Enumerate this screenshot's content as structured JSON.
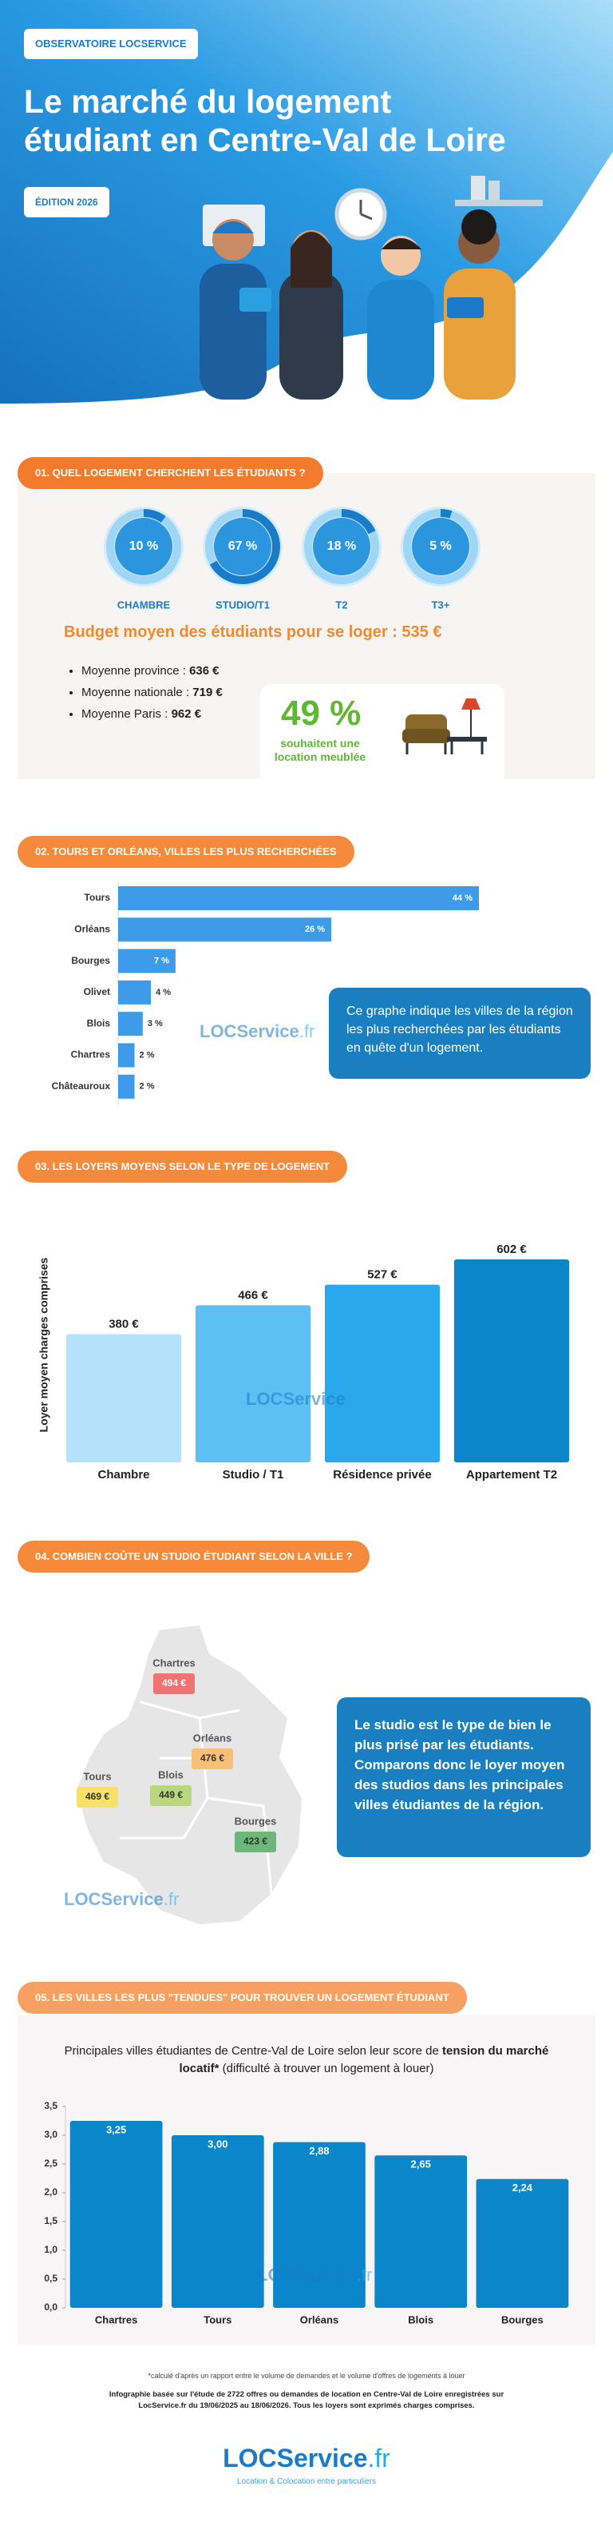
{
  "header": {
    "badge": "OBSERVATOIRE LOCSERVICE",
    "title_lines": [
      "Le marché du logement",
      "étudiant en Centre-Val de Loire"
    ],
    "edition": "ÉDITION 2026"
  },
  "section1": {
    "heading": "01. QUEL LOGEMENT CHERCHENT LES ÉTUDIANTS ?",
    "chart_data": {
      "type": "donut",
      "categories": [
        "CHAMBRE",
        "STUDIO/T1",
        "T2",
        "T3+"
      ],
      "values": [
        10,
        67,
        18,
        5
      ],
      "value_labels": [
        "10 %",
        "67 %",
        "18 %",
        "5 %"
      ],
      "color": "#1a7cc9"
    },
    "budget": "Budget moyen des étudiants pour se loger : 535 €",
    "averages": [
      {
        "label": "Moyenne province :",
        "value": "636 €"
      },
      {
        "label": "Moyenne nationale :",
        "value": "719 €"
      },
      {
        "label": "Moyenne Paris :",
        "value": "962 €"
      }
    ],
    "furnished": {
      "value": "49 %",
      "text": "souhaitent une location meublée"
    }
  },
  "section2": {
    "heading": "02. TOURS ET ORLÉANS, VILLES LES PLUS RECHERCHÉES",
    "chart_data": {
      "type": "hbar",
      "categories": [
        "Tours",
        "Orléans",
        "Bourges",
        "Olivet",
        "Blois",
        "Chartres",
        "Châteauroux"
      ],
      "values": [
        44,
        26,
        7,
        4,
        3,
        2,
        2
      ],
      "value_labels": [
        "44 %",
        "26 %",
        "7 %",
        "4 %",
        "3 %",
        "2 %",
        "2 %"
      ],
      "color": "#3d9be9"
    },
    "callout": "Ce graphe indique les villes de la région les plus recherchées par les étudiants en quête d'un logement."
  },
  "section3": {
    "heading": "03. LES LOYERS MOYENS SELON LE TYPE DE LOGEMENT",
    "chart_data": {
      "type": "bar",
      "y_label": "Loyer moyen charges comprises",
      "categories": [
        "Chambre",
        "Studio / T1",
        "Résidence privée",
        "Appartement T2"
      ],
      "values": [
        380,
        466,
        527,
        602
      ],
      "value_labels": [
        "380 €",
        "466 €",
        "527 €",
        "602 €"
      ],
      "colors": [
        "#b5e2fb",
        "#5dbff3",
        "#2aa8ee",
        "#0b86ca"
      ]
    }
  },
  "section4": {
    "heading": "04. COMBIEN COÛTE UN STUDIO ÉTUDIANT SELON LA VILLE ?",
    "cities": [
      {
        "name": "Chartres",
        "price": "494 €",
        "color": "#f07272"
      },
      {
        "name": "Orléans",
        "price": "476 €",
        "color": "#f8bf78"
      },
      {
        "name": "Tours",
        "price": "469 €",
        "color": "#f8e06a"
      },
      {
        "name": "Blois",
        "price": "449 €",
        "color": "#b9d77c"
      },
      {
        "name": "Bourges",
        "price": "423 €",
        "color": "#6cb87b"
      }
    ],
    "callout": "Le studio est le type de bien le plus prisé par les étudiants. Comparons donc le loyer moyen des studios dans les principales villes étudiantes de la région."
  },
  "section5": {
    "heading": "05. LES VILLES LES PLUS \"TENDUES\" POUR TROUVER UN LOGEMENT ÉTUDIANT",
    "subtitle": {
      "before": "Principales villes étudiantes de Centre-Val de Loire selon leur score de",
      "bold": "tension du marché locatif*",
      "after": "(difficulté à trouver un logement à louer)"
    },
    "chart_data": {
      "type": "bar",
      "categories": [
        "Chartres",
        "Tours",
        "Orléans",
        "Blois",
        "Bourges"
      ],
      "values": [
        3.25,
        3,
        2.88,
        2.65,
        2.24
      ],
      "value_labels": [
        "3,25",
        "3,00",
        "2,88",
        "2,65",
        "2,24"
      ],
      "color": "#0b86ca",
      "ylim": [
        0,
        3.5
      ],
      "yticks": [
        {
          "value": 0,
          "label": "0,0"
        },
        {
          "value": 0.5,
          "label": "0,5"
        },
        {
          "value": 1,
          "label": "1,0"
        },
        {
          "value": 1.5,
          "label": "1,5"
        },
        {
          "value": 2,
          "label": "2,0"
        },
        {
          "value": 2.5,
          "label": "2,5"
        },
        {
          "value": 3,
          "label": "3,0"
        },
        {
          "value": 3.5,
          "label": "3,5"
        }
      ]
    }
  },
  "footer": {
    "note": "*calculé d'après un rapport entre le volume de demandes et le volume d'offres de logements à louer",
    "source": "Infographie basée sur l'étude de 2722 offres ou demandes de location en Centre-Val de Loire enregistrées sur LocService.fr du 19/06/2025 au 18/06/2026. Tous les loyers sont exprimés charges comprises.",
    "tagline": "Location & Colocation entre particuliers"
  },
  "logo": {
    "brand": "LOCService",
    "tld": ".fr"
  }
}
